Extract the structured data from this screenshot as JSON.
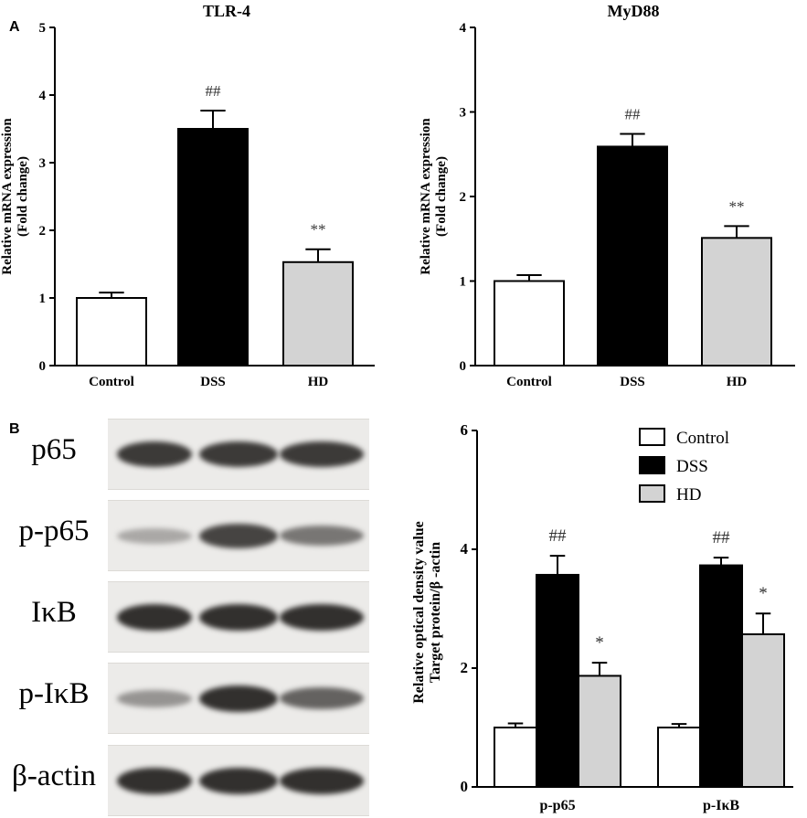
{
  "panels": {
    "a_label": "A",
    "b_label": "B"
  },
  "blot": {
    "rows": [
      {
        "label": "p65",
        "intensities": [
          0.9,
          0.9,
          0.9
        ]
      },
      {
        "label": "p-p65",
        "intensities": [
          0.35,
          0.85,
          0.6
        ]
      },
      {
        "label": "IκB",
        "intensities": [
          0.95,
          0.95,
          0.95
        ]
      },
      {
        "label": "p-IκB",
        "intensities": [
          0.45,
          0.95,
          0.7
        ]
      },
      {
        "label": "β-actin",
        "intensities": [
          0.95,
          0.95,
          0.95
        ]
      }
    ]
  },
  "colors": {
    "control": "#ffffff",
    "dss": "#000000",
    "hd": "#d3d3d3"
  },
  "chart_data": [
    {
      "type": "bar",
      "title": "TLR-4",
      "ylabel": [
        "Relative mRNA expression",
        "(Fold change)"
      ],
      "categories": [
        "Control",
        "DSS",
        "HD"
      ],
      "values": [
        1.0,
        3.5,
        1.53
      ],
      "errors": [
        0.08,
        0.27,
        0.19
      ],
      "annotations": [
        "",
        "##",
        "**"
      ],
      "ylim": [
        0,
        5
      ],
      "yticks": [
        0,
        1,
        2,
        3,
        4,
        5
      ]
    },
    {
      "type": "bar",
      "title": "MyD88",
      "ylabel": [
        "Relative mRNA expression",
        "(Fold change)"
      ],
      "categories": [
        "Control",
        "DSS",
        "HD"
      ],
      "values": [
        1.0,
        2.59,
        1.51
      ],
      "errors": [
        0.07,
        0.15,
        0.14
      ],
      "annotations": [
        "",
        "##",
        "**"
      ],
      "ylim": [
        0,
        4
      ],
      "yticks": [
        0,
        1,
        2,
        3,
        4
      ]
    },
    {
      "type": "bar",
      "title": "",
      "ylabel": [
        "Relative optical density value",
        "Target protein/β -actin"
      ],
      "categories": [
        "p-p65",
        "p-IκB"
      ],
      "series": [
        {
          "name": "Control",
          "values": [
            1.0,
            1.0
          ],
          "errors": [
            0.07,
            0.06
          ],
          "annotations": [
            "",
            ""
          ]
        },
        {
          "name": "DSS",
          "values": [
            3.57,
            3.73
          ],
          "errors": [
            0.32,
            0.13
          ],
          "annotations": [
            "##",
            "##"
          ]
        },
        {
          "name": "HD",
          "values": [
            1.87,
            2.57
          ],
          "errors": [
            0.22,
            0.35
          ],
          "annotations": [
            "*",
            "*"
          ]
        }
      ],
      "ylim": [
        0,
        6
      ],
      "yticks": [
        0,
        2,
        4,
        6
      ],
      "legend_position": "top-right"
    }
  ]
}
